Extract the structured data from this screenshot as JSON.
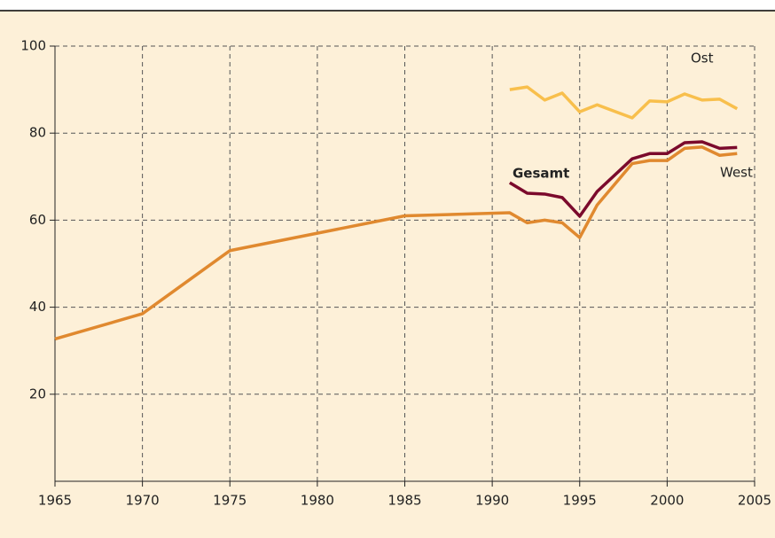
{
  "chart_data": {
    "type": "line",
    "x": [
      1965,
      1970,
      1975,
      1985,
      1991,
      1992,
      1993,
      1994,
      1995,
      1996,
      1998,
      1999,
      2000,
      2001,
      2002,
      2003,
      2004
    ],
    "series": [
      {
        "name": "West",
        "color": "#e0892f",
        "values": [
          32.7,
          38.5,
          53,
          61,
          61.7,
          59.4,
          60,
          59.4,
          56,
          63.5,
          73,
          73.7,
          73.7,
          76.5,
          76.8,
          74.9,
          75.3
        ]
      },
      {
        "name": "Gesamt",
        "color": "#7b0a2c",
        "values": [
          null,
          null,
          null,
          null,
          68.6,
          66.2,
          66,
          65.2,
          60.9,
          66.6,
          74.1,
          75.3,
          75.3,
          77.8,
          78,
          76.5,
          76.7
        ]
      },
      {
        "name": "Ost",
        "color": "#f8bf4c",
        "values": [
          null,
          null,
          null,
          null,
          90,
          90.6,
          87.6,
          89.2,
          84.9,
          86.5,
          83.5,
          87.4,
          87.2,
          89,
          87.6,
          87.8,
          85.6
        ]
      }
    ],
    "xlim": [
      1965,
      2005
    ],
    "xticks": [
      1965,
      1970,
      1975,
      1980,
      1985,
      1990,
      1995,
      2000,
      2005
    ],
    "ylim": [
      0,
      100
    ],
    "yticks": [
      20,
      40,
      60,
      80,
      100
    ],
    "grid": true
  }
}
